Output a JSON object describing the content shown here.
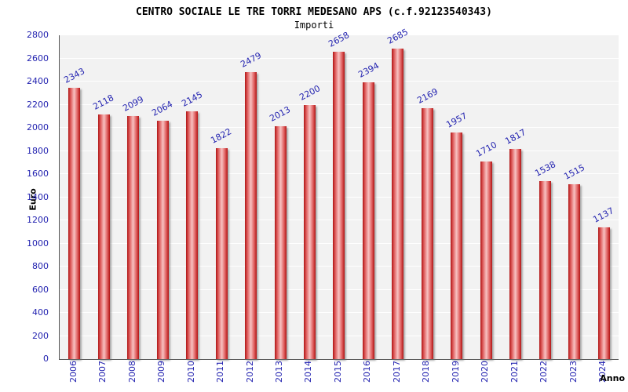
{
  "chart_data": {
    "type": "bar",
    "title": "CENTRO SOCIALE LE TRE TORRI MEDESANO APS (c.f.92123540343)",
    "subtitle": "Importi",
    "xlabel": "Anno",
    "ylabel": "Euro",
    "categories": [
      "2006",
      "2007",
      "2008",
      "2009",
      "2010",
      "2011",
      "2012",
      "2013",
      "2014",
      "2015",
      "2016",
      "2017",
      "2018",
      "2019",
      "2020",
      "2021",
      "2022",
      "2023",
      "2024"
    ],
    "values": [
      2343,
      2118,
      2099,
      2064,
      2145,
      1822,
      2479,
      2013,
      2200,
      2658,
      2394,
      2685,
      2169,
      1957,
      1710,
      1817,
      1538,
      1515,
      1137
    ],
    "ylim": [
      0,
      2800
    ],
    "ytick_step": 200,
    "grid": true,
    "legend": "none",
    "bar_color": "#cc2222",
    "value_label_color": "#2323b0",
    "tick_label_color": "#2323b0",
    "plot_background": "#f2f2f2",
    "grid_color": "#ffffff"
  }
}
